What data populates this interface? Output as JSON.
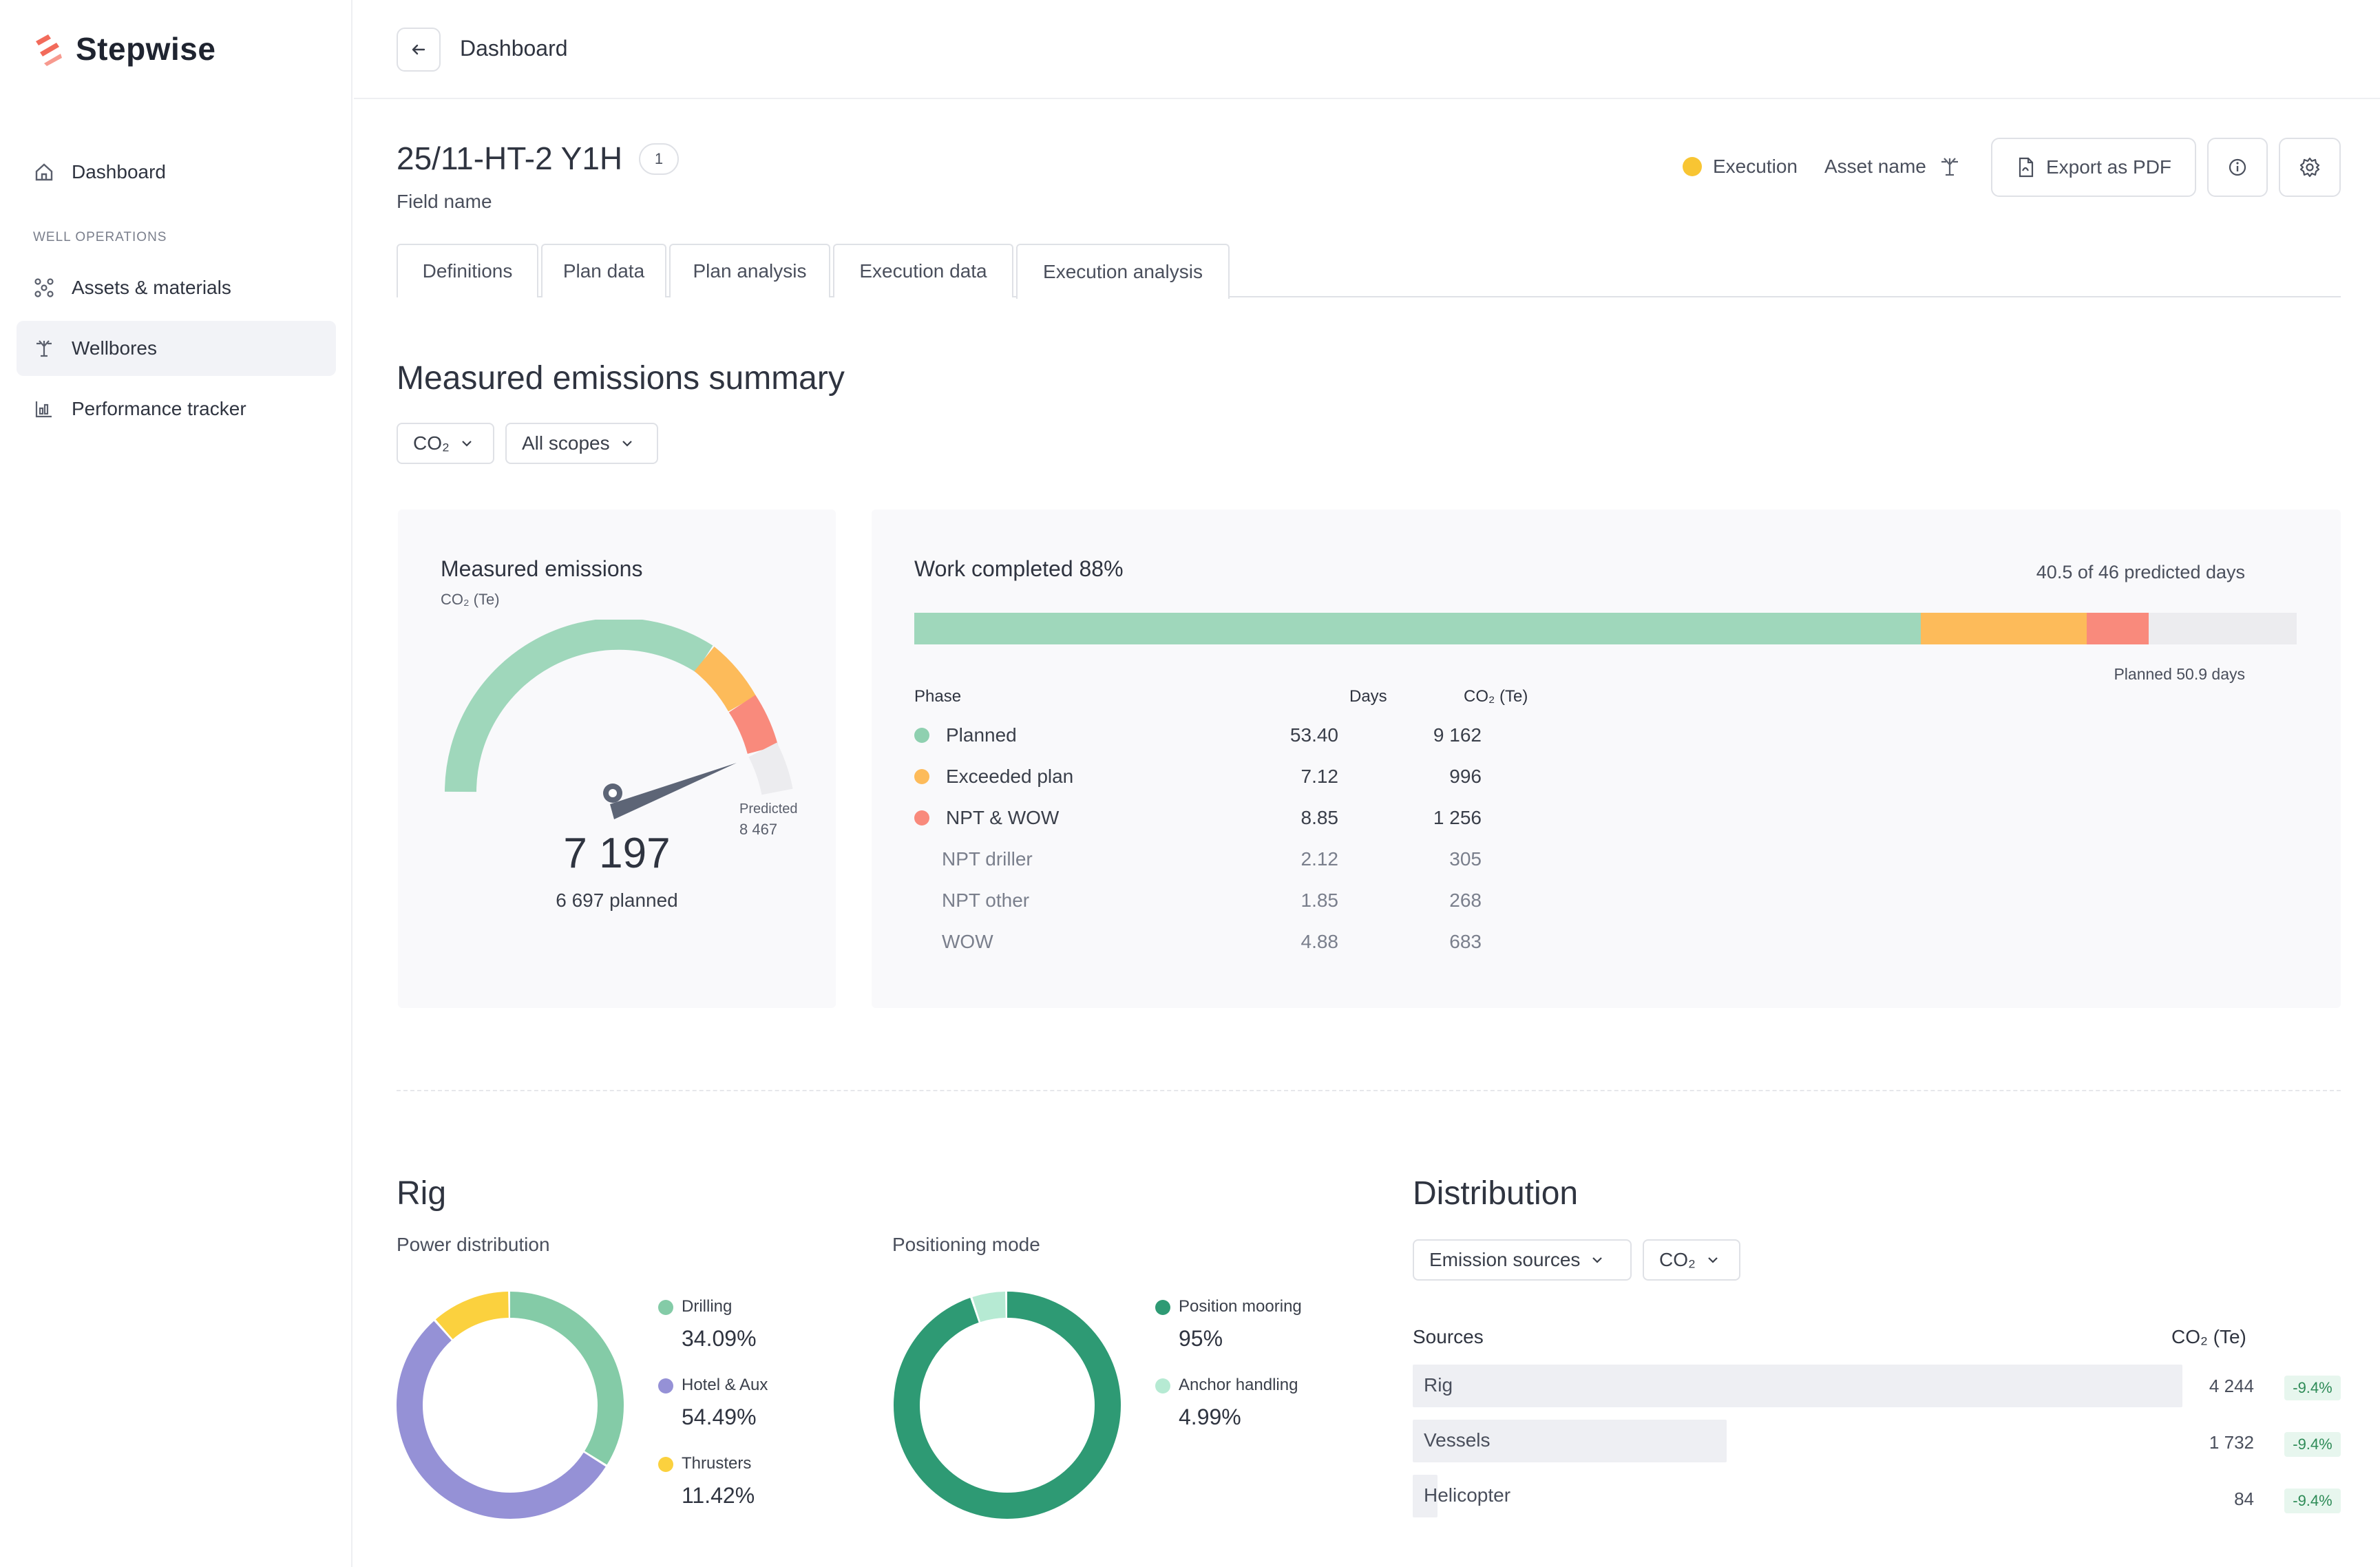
{
  "app": {
    "name": "Stepwise",
    "brand_color": "#f26b5b"
  },
  "sidebar": {
    "items": [
      {
        "label": "Dashboard",
        "icon": "home-icon"
      },
      {
        "label": "Assets & materials",
        "icon": "nodes-icon"
      },
      {
        "label": "Wellbores",
        "icon": "rig-icon"
      },
      {
        "label": "Performance tracker",
        "icon": "bar-chart-icon"
      }
    ],
    "section_label": "WELL OPERATIONS"
  },
  "header": {
    "breadcrumb": "Dashboard",
    "title": "25/11-HT-2 Y1H",
    "title_badge": "1",
    "subtitle": "Field name",
    "status": "Execution",
    "asset": "Asset name",
    "export_label": "Export as PDF"
  },
  "tabs": [
    "Definitions",
    "Plan data",
    "Plan analysis",
    "Execution data",
    "Execution analysis"
  ],
  "summary": {
    "title": "Measured emissions summary",
    "filter_gas": "CO₂",
    "filter_scope": "All scopes",
    "gauge": {
      "title": "Measured emissions",
      "unit": "CO₂ (Te)",
      "value": "7 197",
      "planned": "6 697 planned",
      "predicted_label": "Predicted",
      "predicted_value": "8 467"
    },
    "work": {
      "title": "Work completed 88%",
      "days_text": "40.5 of 46 predicted days",
      "planned_days_text": "Planned 50.9 days",
      "progress": {
        "planned": 0.728,
        "exceeded": 0.12,
        "npt": 0.045
      },
      "head_phase": "Phase",
      "head_days": "Days",
      "head_co2": "CO₂ (Te)",
      "rows": [
        {
          "phase": "Planned",
          "days": "53.40",
          "co2": "9 162",
          "color": "#8fd0b0"
        },
        {
          "phase": "Exceeded plan",
          "days": "7.12",
          "co2": "996",
          "color": "#fdbb5a"
        },
        {
          "phase": "NPT & WOW",
          "days": "8.85",
          "co2": "1 256",
          "color": "#f98a7c"
        },
        {
          "phase": "NPT driller",
          "days": "2.12",
          "co2": "305"
        },
        {
          "phase": "NPT other",
          "days": "1.85",
          "co2": "268"
        },
        {
          "phase": "WOW",
          "days": "4.88",
          "co2": "683"
        }
      ]
    }
  },
  "rig": {
    "title": "Rig",
    "power_title": "Power distribution",
    "power": [
      {
        "label": "Drilling",
        "value": "34.09%",
        "pct": 34.09,
        "color": "#84cba7"
      },
      {
        "label": "Hotel & Aux",
        "value": "54.49%",
        "pct": 54.49,
        "color": "#9591d6"
      },
      {
        "label": "Thrusters",
        "value": "11.42%",
        "pct": 11.42,
        "color": "#fbd13e"
      }
    ],
    "positioning_title": "Positioning mode",
    "positioning": [
      {
        "label": "Position mooring",
        "value": "95%",
        "pct": 95,
        "color": "#2e9a74"
      },
      {
        "label": "Anchor handling",
        "value": "4.99%",
        "pct": 4.99,
        "color": "#b6ead3"
      }
    ]
  },
  "distribution": {
    "title": "Distribution",
    "filter_source": "Emission sources",
    "filter_gas": "CO₂",
    "head_sources": "Sources",
    "head_co2": "CO₂ (Te)",
    "rows": [
      {
        "name": "Rig",
        "value": "4 244",
        "share": 1.0,
        "badge": "-9.4%"
      },
      {
        "name": "Vessels",
        "value": "1 732",
        "share": 0.408,
        "badge": "-9.4%"
      },
      {
        "name": "Helicopter",
        "value": "84",
        "share": 0.02,
        "badge": "-9.4%"
      }
    ]
  }
}
